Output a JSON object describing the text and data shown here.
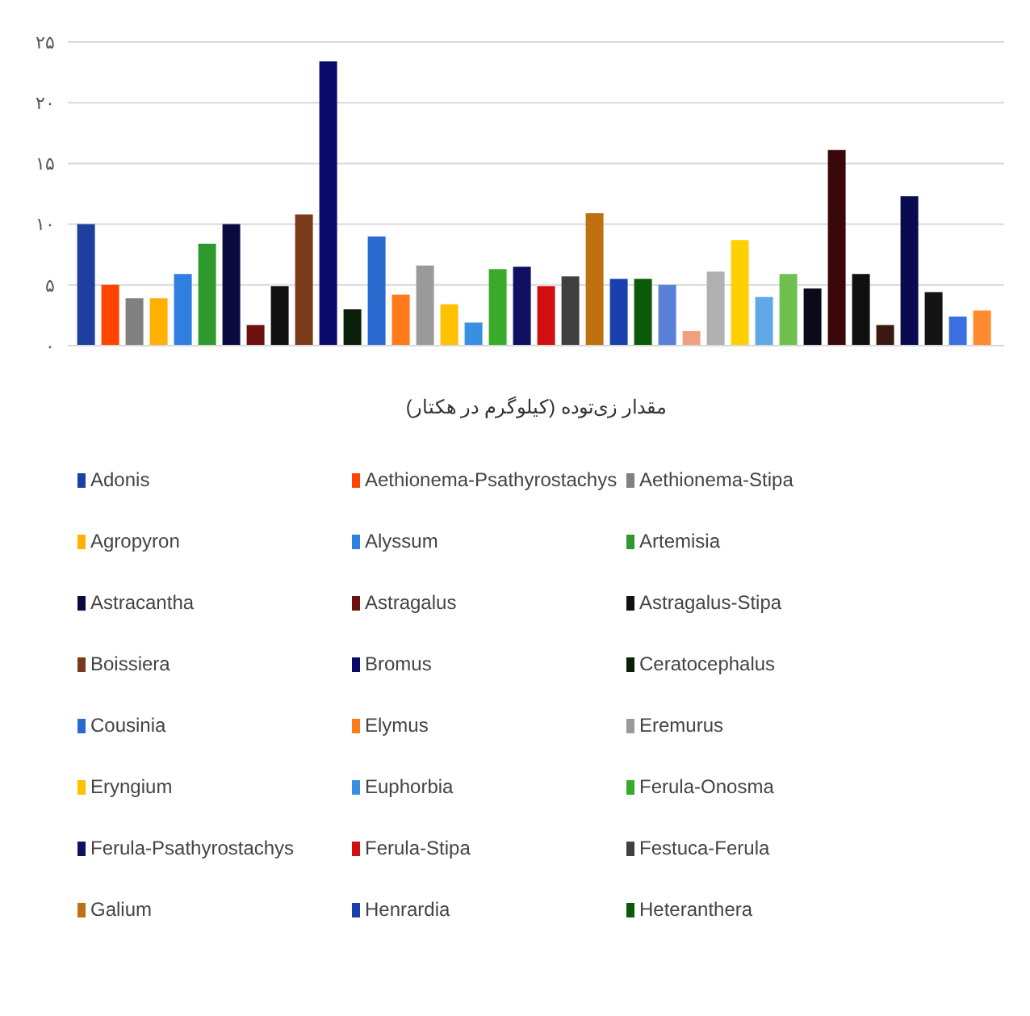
{
  "chart_data": {
    "type": "bar",
    "xlabel": "مقدار زی‌توده (کیلوگرم در هکتار)",
    "categories": [
      null
    ],
    "ylim": [
      0,
      25
    ],
    "yticks": [
      {
        "value": 0,
        "label": "۰"
      },
      {
        "value": 5,
        "label": "۵"
      },
      {
        "value": 10,
        "label": "۱۰"
      },
      {
        "value": 15,
        "label": "۱۵"
      },
      {
        "value": 20,
        "label": "۲۰"
      },
      {
        "value": 25,
        "label": "۲۵"
      }
    ],
    "grid": "y",
    "legend": "bottom",
    "series": [
      {
        "name": "Adonis",
        "color": "#1f3fa0",
        "values": [
          10
        ]
      },
      {
        "name": "Aethionema-Psathyrostachys",
        "color": "#ff4500",
        "values": [
          5
        ]
      },
      {
        "name": "Aethionema-Stipa",
        "color": "#808080",
        "values": [
          3.9
        ]
      },
      {
        "name": "Agropyron",
        "color": "#ffb000",
        "values": [
          3.9
        ]
      },
      {
        "name": "Alyssum",
        "color": "#2f7fe0",
        "values": [
          5.9
        ]
      },
      {
        "name": "Artemisia",
        "color": "#2e9a2e",
        "values": [
          8.4
        ]
      },
      {
        "name": "Astracantha",
        "color": "#0a0a40",
        "values": [
          10
        ]
      },
      {
        "name": "Astragalus",
        "color": "#6b0f0f",
        "values": [
          1.7
        ]
      },
      {
        "name": "Astragalus-Stipa",
        "color": "#111111",
        "values": [
          4.9
        ]
      },
      {
        "name": "Boissiera",
        "color": "#7a3a1a",
        "values": [
          10.8
        ]
      },
      {
        "name": "Bromus",
        "color": "#0a0a6a",
        "values": [
          23.4
        ]
      },
      {
        "name": "Ceratocephalus",
        "color": "#0a200a",
        "values": [
          3
        ]
      },
      {
        "name": "Cousinia",
        "color": "#2a6ad0",
        "values": [
          9
        ]
      },
      {
        "name": "Elymus",
        "color": "#ff7a1a",
        "values": [
          4.2
        ]
      },
      {
        "name": "Eremurus",
        "color": "#9a9a9a",
        "values": [
          6.6
        ]
      },
      {
        "name": "Eryngium",
        "color": "#ffc000",
        "values": [
          3.4
        ]
      },
      {
        "name": "Euphorbia",
        "color": "#3a90e0",
        "values": [
          1.9
        ]
      },
      {
        "name": "Ferula-Onosma",
        "color": "#3aaa2a",
        "values": [
          6.3
        ]
      },
      {
        "name": "Ferula-Psathyrostachys",
        "color": "#101060",
        "values": [
          6.5
        ]
      },
      {
        "name": "Ferula-Stipa",
        "color": "#d01010",
        "values": [
          4.9
        ]
      },
      {
        "name": "Festuca-Ferula",
        "color": "#404040",
        "values": [
          5.7
        ]
      },
      {
        "name": "Galium",
        "color": "#c07010",
        "values": [
          10.9
        ]
      },
      {
        "name": "Henrardia",
        "color": "#1a40b0",
        "values": [
          5.5
        ]
      },
      {
        "name": "Heteranthera",
        "color": "#0a5a0a",
        "values": [
          5.5
        ]
      },
      {
        "color": "#5a80d8",
        "values": [
          5
        ]
      },
      {
        "color": "#f0a080",
        "values": [
          1.2
        ]
      },
      {
        "color": "#b0b0b0",
        "values": [
          6.1
        ]
      },
      {
        "color": "#ffd000",
        "values": [
          8.7
        ]
      },
      {
        "color": "#60a8e8",
        "values": [
          4
        ]
      },
      {
        "color": "#70c050",
        "values": [
          5.9
        ]
      },
      {
        "color": "#0a0a1a",
        "values": [
          4.7
        ]
      },
      {
        "color": "#3a0808",
        "values": [
          16.1
        ]
      },
      {
        "color": "#101010",
        "values": [
          5.9
        ]
      },
      {
        "color": "#3a1a10",
        "values": [
          1.7
        ]
      },
      {
        "color": "#0a0a50",
        "values": [
          12.3
        ]
      },
      {
        "color": "#141414",
        "values": [
          4.4
        ]
      },
      {
        "color": "#3a70e0",
        "values": [
          2.4
        ]
      },
      {
        "color": "#ff8a30",
        "values": [
          2.9
        ]
      }
    ]
  }
}
